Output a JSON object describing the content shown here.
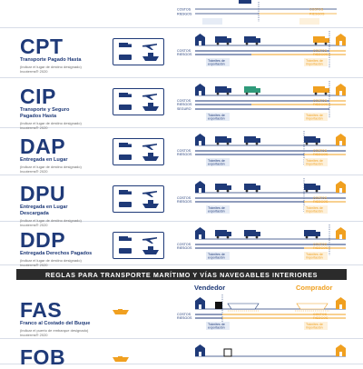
{
  "colors": {
    "navy": "#1f3a78",
    "orange": "#f0a020",
    "banner_bg": "#2b2b2b",
    "green": "#2f9a7a"
  },
  "top_fragment": {
    "costos": "COSTOS",
    "riesgos": "RIESGOS"
  },
  "rows": [
    {
      "term": "CPT",
      "desc": [
        "Transporte Pagado Hasta"
      ],
      "note": "(indicar el lugar de destino designado)\nIncoterms® 2020",
      "costos": "COSTOS",
      "riesgos": "RIESGOS",
      "tramites_exp": "Trámites de\nexportación",
      "tramites_imp": "Trámites de\nimportación"
    },
    {
      "term": "CIP",
      "desc": [
        "Transporte y Seguro",
        "Pagados Hasta"
      ],
      "note": "(indicar el lugar de destino designado)\nIncoterms® 2020",
      "costos": "COSTOS",
      "riesgos": "RIESGOS",
      "seguro": "SEGURO",
      "tramites_exp": "Trámites de\nexportación",
      "tramites_imp": "Trámites de\nimportación"
    },
    {
      "term": "DAP",
      "desc": [
        "Entregada en Lugar"
      ],
      "note": "(indicar el lugar de destino designado)\nIncoterms® 2020",
      "costos": "COSTOS",
      "riesgos": "RIESGOS",
      "tramites_exp": "Trámites de\nexportación",
      "tramites_imp": "Trámites de\nimportación"
    },
    {
      "term": "DPU",
      "desc": [
        "Entregada en Lugar",
        "Descargada"
      ],
      "note": "(indicar el lugar de destino designado)\nIncoterms® 2020",
      "costos": "COSTOS",
      "riesgos": "RIESGOS",
      "tramites_exp": "Trámites de\nexportación",
      "tramites_imp": "Trámites de\nimportación"
    },
    {
      "term": "DDP",
      "desc": [
        "Entregada Derechos Pagados"
      ],
      "note": "(indicar el lugar de destino designado)\nIncoterms® 2020",
      "costos": "COSTOS",
      "riesgos": "RIESGOS",
      "tramites_exp": "Trámites de\nexportación",
      "tramites_imp": "Trámites de\nimportación"
    }
  ],
  "banner": "REGLAS PARA TRANSPORTE MARÍTIMO Y VÍAS NAVEGABLES INTERIORES",
  "vendedor": "Vendedor",
  "comprador": "Comprador",
  "sea_rows": [
    {
      "term": "FAS",
      "desc": [
        "Franco al Costado del Buque"
      ],
      "note": "(indicar el puerto de embarque designado)\nIncoterms® 2020",
      "costos": "COSTOS",
      "riesgos": "RIESGOS",
      "tramites_exp": "Trámites de\nexportación",
      "tramites_imp": "Trámites de\nimportación"
    },
    {
      "term": "FOB",
      "desc": [],
      "note": ""
    }
  ]
}
